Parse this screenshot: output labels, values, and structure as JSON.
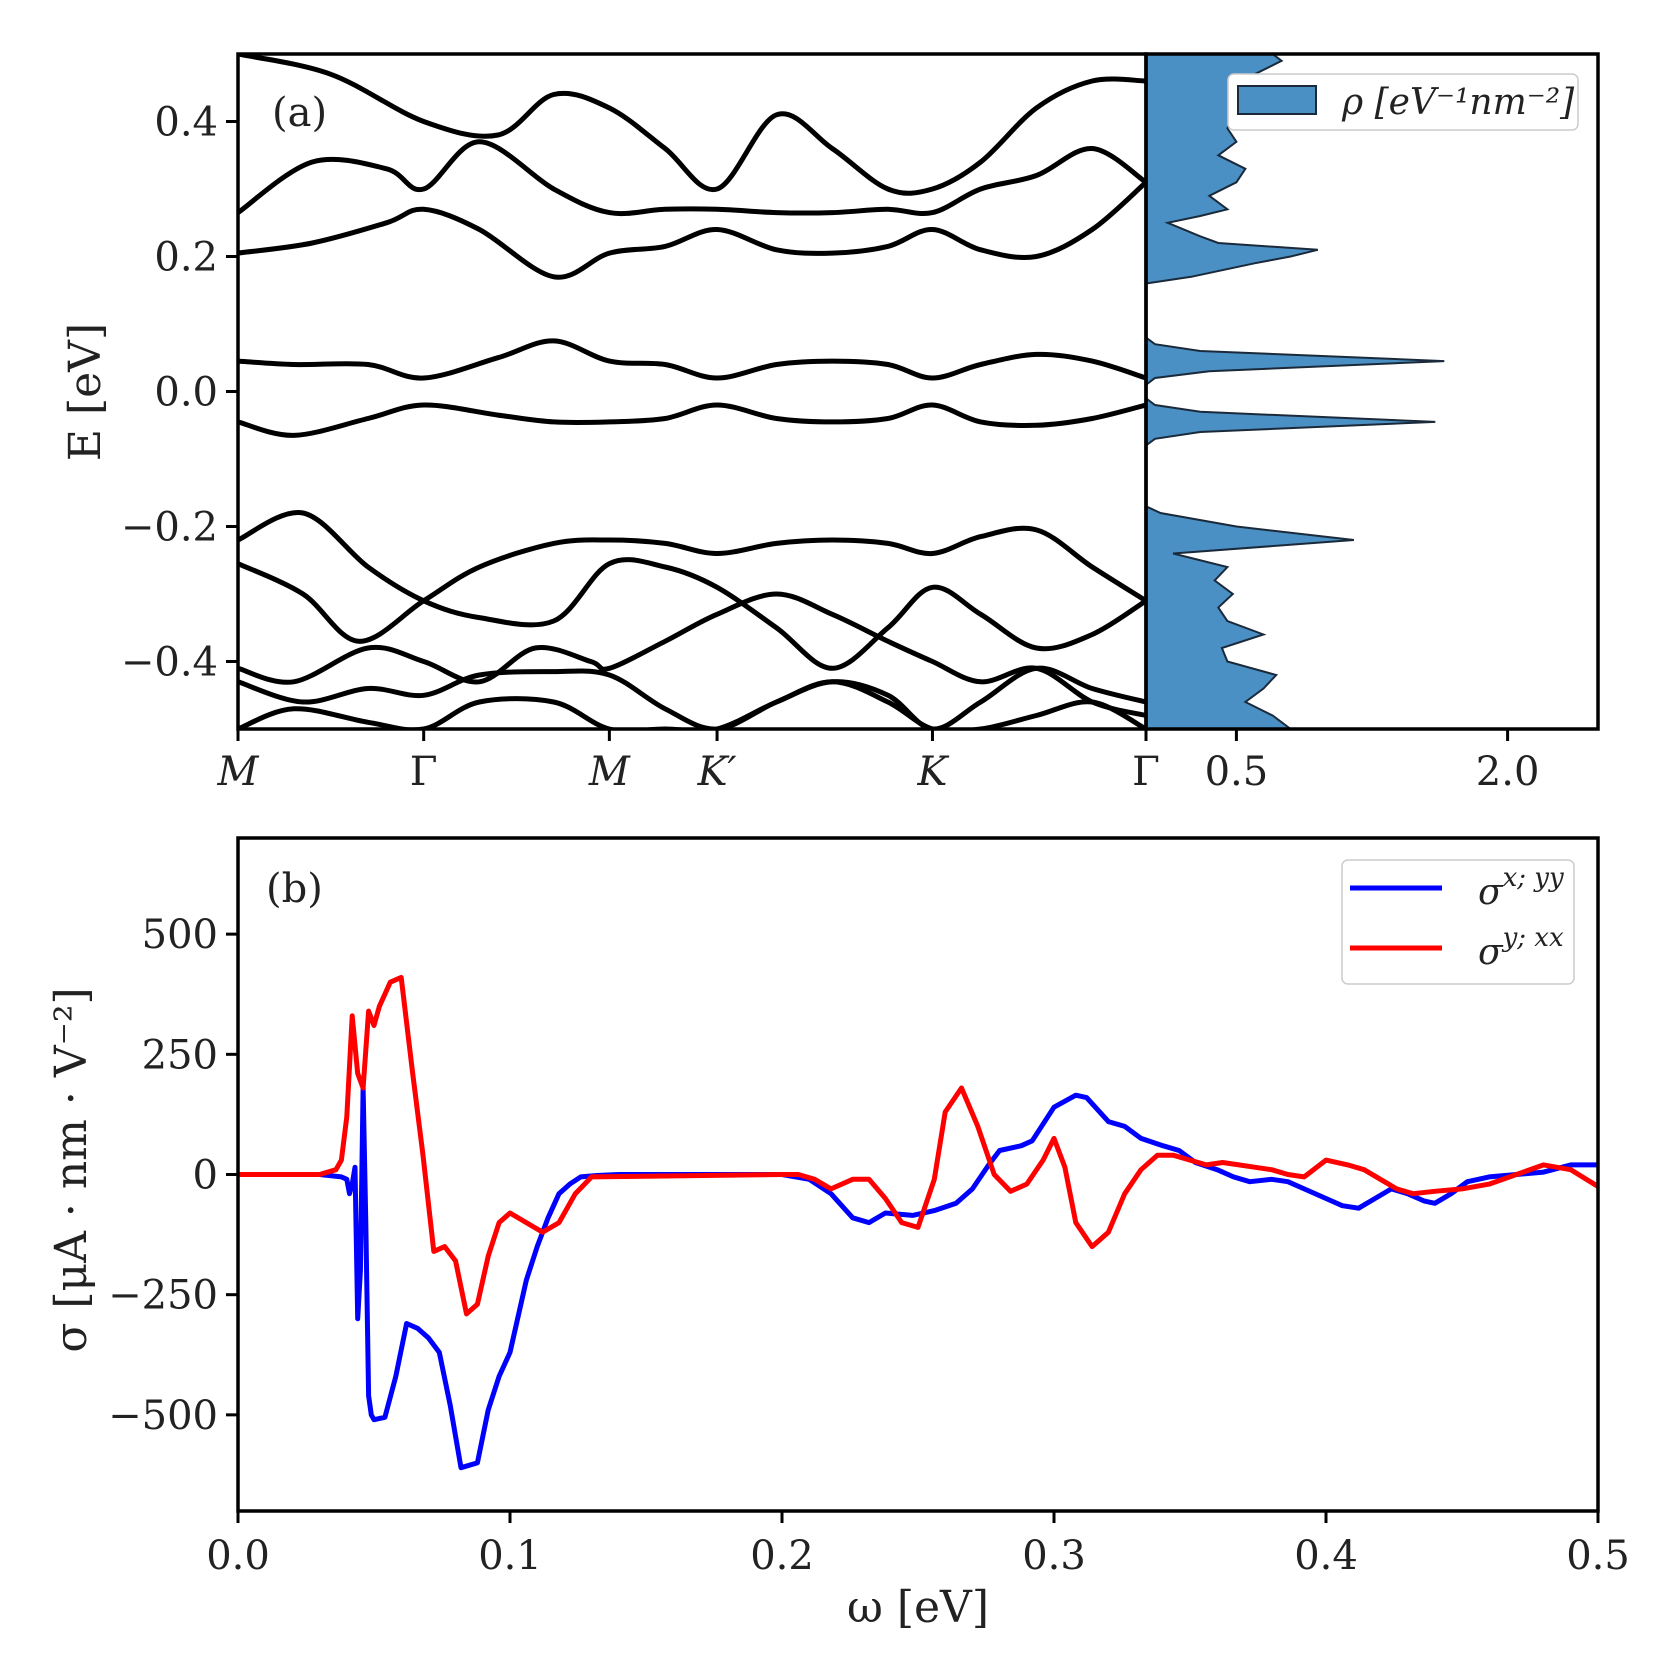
{
  "chart_data": [
    {
      "type": "line",
      "panel_label": "(a)",
      "title": "",
      "xlabel": "",
      "ylabel": "E [eV]",
      "ylim": [
        -0.5,
        0.5
      ],
      "yticks": [
        -0.4,
        -0.2,
        0.0,
        0.2,
        0.4
      ],
      "ytick_labels": [
        "−0.4",
        "−0.2",
        "0.0",
        "0.2",
        "0.4"
      ],
      "k_path_labels": [
        "M",
        "Γ",
        "M",
        "K′",
        "K",
        "Γ"
      ],
      "k_path_positions": [
        0.0,
        1.0,
        2.0,
        2.58,
        3.74,
        4.89
      ],
      "series": [
        {
          "name": "band_c1",
          "x": [
            0.0,
            0.3,
            0.7,
            1.0,
            1.4,
            1.7,
            2.0,
            2.3,
            2.58,
            2.9,
            3.2,
            3.5,
            3.74,
            4.0,
            4.3,
            4.6,
            4.89
          ],
          "values": [
            0.045,
            0.04,
            0.04,
            0.02,
            0.05,
            0.075,
            0.045,
            0.04,
            0.02,
            0.04,
            0.045,
            0.04,
            0.02,
            0.04,
            0.055,
            0.045,
            0.02
          ]
        },
        {
          "name": "band_v1",
          "x": [
            0.0,
            0.3,
            0.7,
            1.0,
            1.4,
            1.7,
            2.0,
            2.3,
            2.58,
            2.9,
            3.2,
            3.5,
            3.74,
            4.0,
            4.3,
            4.6,
            4.89
          ],
          "values": [
            -0.045,
            -0.065,
            -0.04,
            -0.02,
            -0.035,
            -0.045,
            -0.045,
            -0.04,
            -0.02,
            -0.04,
            -0.045,
            -0.04,
            -0.02,
            -0.045,
            -0.05,
            -0.04,
            -0.02
          ]
        },
        {
          "name": "band_c2",
          "x": [
            0.0,
            0.4,
            0.8,
            1.0,
            1.3,
            1.7,
            2.0,
            2.3,
            2.58,
            2.9,
            3.2,
            3.5,
            3.74,
            4.0,
            4.3,
            4.6,
            4.89
          ],
          "values": [
            0.205,
            0.22,
            0.25,
            0.27,
            0.24,
            0.17,
            0.205,
            0.215,
            0.24,
            0.21,
            0.205,
            0.215,
            0.24,
            0.21,
            0.2,
            0.24,
            0.31
          ]
        },
        {
          "name": "band_c3",
          "x": [
            0.0,
            0.4,
            0.8,
            1.0,
            1.3,
            1.7,
            2.0,
            2.3,
            2.58,
            2.9,
            3.2,
            3.5,
            3.74,
            4.0,
            4.3,
            4.6,
            4.89
          ],
          "values": [
            0.265,
            0.34,
            0.33,
            0.3,
            0.37,
            0.3,
            0.265,
            0.27,
            0.27,
            0.265,
            0.265,
            0.27,
            0.265,
            0.3,
            0.32,
            0.36,
            0.31
          ]
        },
        {
          "name": "band_c4",
          "x": [
            0.0,
            0.5,
            1.0,
            1.4,
            1.7,
            2.0,
            2.3,
            2.58,
            2.9,
            3.2,
            3.5,
            3.74,
            4.0,
            4.3,
            4.6,
            4.89
          ],
          "values": [
            0.5,
            0.47,
            0.4,
            0.38,
            0.44,
            0.42,
            0.36,
            0.3,
            0.41,
            0.36,
            0.3,
            0.3,
            0.34,
            0.42,
            0.46,
            0.46
          ]
        },
        {
          "name": "band_v2",
          "x": [
            0.0,
            0.35,
            0.7,
            1.0,
            1.3,
            1.7,
            2.0,
            2.3,
            2.58,
            2.9,
            3.2,
            3.5,
            3.74,
            4.0,
            4.3,
            4.6,
            4.89
          ],
          "values": [
            -0.22,
            -0.18,
            -0.26,
            -0.31,
            -0.335,
            -0.34,
            -0.255,
            -0.26,
            -0.29,
            -0.35,
            -0.41,
            -0.35,
            -0.29,
            -0.33,
            -0.38,
            -0.36,
            -0.31
          ]
        },
        {
          "name": "band_v3",
          "x": [
            0.0,
            0.35,
            0.65,
            1.0,
            1.3,
            1.7,
            2.0,
            2.3,
            2.58,
            2.9,
            3.2,
            3.5,
            3.74,
            4.0,
            4.3,
            4.6,
            4.89
          ],
          "values": [
            -0.255,
            -0.3,
            -0.37,
            -0.31,
            -0.26,
            -0.225,
            -0.22,
            -0.225,
            -0.24,
            -0.225,
            -0.22,
            -0.225,
            -0.24,
            -0.215,
            -0.205,
            -0.26,
            -0.31
          ]
        },
        {
          "name": "band_v4",
          "x": [
            0.0,
            0.3,
            0.7,
            1.0,
            1.3,
            1.6,
            1.9,
            2.0,
            2.3,
            2.58,
            2.9,
            3.2,
            3.5,
            3.74,
            4.0,
            4.3,
            4.6,
            4.89
          ],
          "values": [
            -0.41,
            -0.43,
            -0.38,
            -0.4,
            -0.43,
            -0.38,
            -0.4,
            -0.41,
            -0.37,
            -0.33,
            -0.3,
            -0.33,
            -0.37,
            -0.4,
            -0.43,
            -0.41,
            -0.46,
            -0.48
          ]
        },
        {
          "name": "band_v5",
          "x": [
            0.0,
            0.35,
            0.7,
            1.0,
            1.3,
            1.7,
            2.0,
            2.3,
            2.58,
            2.9,
            3.2,
            3.5,
            3.74,
            4.0,
            4.3,
            4.6,
            4.89
          ],
          "values": [
            -0.43,
            -0.46,
            -0.44,
            -0.45,
            -0.42,
            -0.415,
            -0.42,
            -0.47,
            -0.5,
            -0.46,
            -0.43,
            -0.45,
            -0.5,
            -0.46,
            -0.41,
            -0.44,
            -0.46
          ]
        },
        {
          "name": "band_v6",
          "x": [
            0.0,
            0.3,
            0.7,
            1.0,
            1.3,
            1.7,
            2.0,
            2.3,
            2.58,
            2.9,
            3.2,
            3.5,
            3.74,
            4.0,
            4.3,
            4.6,
            4.89
          ],
          "values": [
            -0.5,
            -0.47,
            -0.49,
            -0.5,
            -0.46,
            -0.46,
            -0.5,
            -0.5,
            -0.5,
            -0.46,
            -0.43,
            -0.46,
            -0.5,
            -0.5,
            -0.48,
            -0.46,
            -0.5
          ]
        }
      ],
      "dos_panel": {
        "type": "area",
        "legend": "ρ [eV⁻¹nm⁻²]",
        "xticks": [
          0.5,
          2.0
        ],
        "xtick_labels": [
          "0.5",
          "2.0"
        ],
        "xlim": [
          0.0,
          2.5
        ],
        "energies": [
          -0.5,
          -0.48,
          -0.46,
          -0.44,
          -0.42,
          -0.4,
          -0.38,
          -0.36,
          -0.34,
          -0.32,
          -0.3,
          -0.28,
          -0.26,
          -0.24,
          -0.22,
          -0.2,
          -0.18,
          -0.17,
          -0.16,
          -0.12,
          -0.08,
          -0.07,
          -0.06,
          -0.045,
          -0.03,
          -0.02,
          -0.01,
          0.0,
          0.01,
          0.02,
          0.03,
          0.045,
          0.06,
          0.07,
          0.08,
          0.1,
          0.16,
          0.17,
          0.19,
          0.2,
          0.21,
          0.22,
          0.23,
          0.25,
          0.26,
          0.27,
          0.29,
          0.31,
          0.33,
          0.35,
          0.37,
          0.39,
          0.41,
          0.43,
          0.45,
          0.47,
          0.49,
          0.5
        ],
        "rho": [
          0.8,
          0.7,
          0.55,
          0.65,
          0.72,
          0.45,
          0.42,
          0.65,
          0.45,
          0.4,
          0.48,
          0.38,
          0.45,
          0.15,
          1.15,
          0.5,
          0.08,
          0.0,
          0.0,
          0.0,
          0.0,
          0.05,
          0.3,
          1.6,
          0.3,
          0.05,
          0.0,
          0.0,
          0.0,
          0.05,
          0.35,
          1.65,
          0.3,
          0.05,
          0.0,
          0.0,
          0.0,
          0.25,
          0.6,
          0.8,
          0.95,
          0.4,
          0.3,
          0.12,
          0.3,
          0.45,
          0.35,
          0.5,
          0.55,
          0.4,
          0.5,
          0.45,
          0.5,
          0.65,
          0.55,
          0.6,
          0.75,
          0.7
        ]
      }
    },
    {
      "type": "line",
      "panel_label": "(b)",
      "title": "",
      "xlabel": "ω [eV]",
      "ylabel": "σ [μA · nm · V⁻²]",
      "xlim": [
        0.0,
        0.5
      ],
      "ylim": [
        -700,
        700
      ],
      "xticks": [
        0.0,
        0.1,
        0.2,
        0.3,
        0.4,
        0.5
      ],
      "xtick_labels": [
        "0.0",
        "0.1",
        "0.2",
        "0.3",
        "0.4",
        "0.5"
      ],
      "yticks": [
        -500,
        -250,
        0,
        250,
        500
      ],
      "ytick_labels": [
        "−500",
        "−250",
        "0",
        "250",
        "500"
      ],
      "series": [
        {
          "name": "σx;yy",
          "legend_base": "σ",
          "legend_sup": "x; yy",
          "color": "#0000ff",
          "x": [
            0.0,
            0.03,
            0.038,
            0.04,
            0.041,
            0.042,
            0.043,
            0.044,
            0.045,
            0.046,
            0.047,
            0.048,
            0.049,
            0.05,
            0.054,
            0.058,
            0.062,
            0.066,
            0.07,
            0.074,
            0.078,
            0.082,
            0.088,
            0.092,
            0.096,
            0.1,
            0.106,
            0.11,
            0.114,
            0.118,
            0.122,
            0.126,
            0.132,
            0.14,
            0.2,
            0.21,
            0.218,
            0.226,
            0.232,
            0.238,
            0.248,
            0.256,
            0.264,
            0.27,
            0.276,
            0.28,
            0.288,
            0.292,
            0.3,
            0.308,
            0.312,
            0.32,
            0.326,
            0.332,
            0.34,
            0.346,
            0.352,
            0.36,
            0.366,
            0.372,
            0.38,
            0.386,
            0.392,
            0.4,
            0.406,
            0.412,
            0.418,
            0.424,
            0.43,
            0.436,
            0.44,
            0.446,
            0.452,
            0.46,
            0.47,
            0.48,
            0.49,
            0.5
          ],
          "values": [
            0,
            0,
            -5,
            -10,
            -40,
            -20,
            15,
            -300,
            -200,
            180,
            -100,
            -460,
            -500,
            -510,
            -505,
            -420,
            -310,
            -320,
            -340,
            -370,
            -480,
            -610,
            -600,
            -490,
            -420,
            -370,
            -220,
            -150,
            -90,
            -40,
            -20,
            -5,
            -2,
            0,
            0,
            -10,
            -40,
            -90,
            -100,
            -80,
            -85,
            -75,
            -60,
            -30,
            20,
            50,
            60,
            70,
            140,
            165,
            160,
            110,
            100,
            75,
            60,
            50,
            25,
            10,
            -5,
            -15,
            -10,
            -15,
            -30,
            -50,
            -65,
            -70,
            -50,
            -30,
            -40,
            -55,
            -60,
            -40,
            -15,
            -5,
            0,
            5,
            20,
            20
          ]
        },
        {
          "name": "σy;xx",
          "legend_base": "σ",
          "legend_sup": "y; xx",
          "color": "#ff0000",
          "x": [
            0.0,
            0.03,
            0.036,
            0.038,
            0.04,
            0.042,
            0.044,
            0.046,
            0.048,
            0.05,
            0.052,
            0.056,
            0.06,
            0.064,
            0.068,
            0.072,
            0.076,
            0.08,
            0.084,
            0.088,
            0.092,
            0.096,
            0.1,
            0.106,
            0.112,
            0.118,
            0.124,
            0.13,
            0.2,
            0.206,
            0.212,
            0.218,
            0.226,
            0.232,
            0.238,
            0.244,
            0.25,
            0.256,
            0.26,
            0.266,
            0.272,
            0.278,
            0.284,
            0.29,
            0.296,
            0.3,
            0.304,
            0.308,
            0.314,
            0.32,
            0.326,
            0.332,
            0.338,
            0.344,
            0.35,
            0.356,
            0.362,
            0.368,
            0.374,
            0.38,
            0.386,
            0.392,
            0.4,
            0.408,
            0.414,
            0.42,
            0.426,
            0.432,
            0.44,
            0.45,
            0.46,
            0.47,
            0.48,
            0.49,
            0.5
          ],
          "values": [
            0,
            0,
            10,
            30,
            120,
            330,
            210,
            180,
            340,
            310,
            350,
            400,
            410,
            220,
            40,
            -160,
            -150,
            -180,
            -290,
            -270,
            -170,
            -100,
            -80,
            -100,
            -120,
            -100,
            -40,
            -5,
            0,
            0,
            -10,
            -30,
            -10,
            -10,
            -50,
            -100,
            -110,
            -10,
            130,
            180,
            100,
            0,
            -35,
            -20,
            30,
            75,
            15,
            -100,
            -150,
            -120,
            -40,
            10,
            40,
            40,
            30,
            20,
            25,
            20,
            15,
            10,
            0,
            -5,
            30,
            20,
            10,
            -10,
            -30,
            -40,
            -35,
            -30,
            -20,
            0,
            20,
            10,
            -25
          ]
        }
      ]
    }
  ]
}
